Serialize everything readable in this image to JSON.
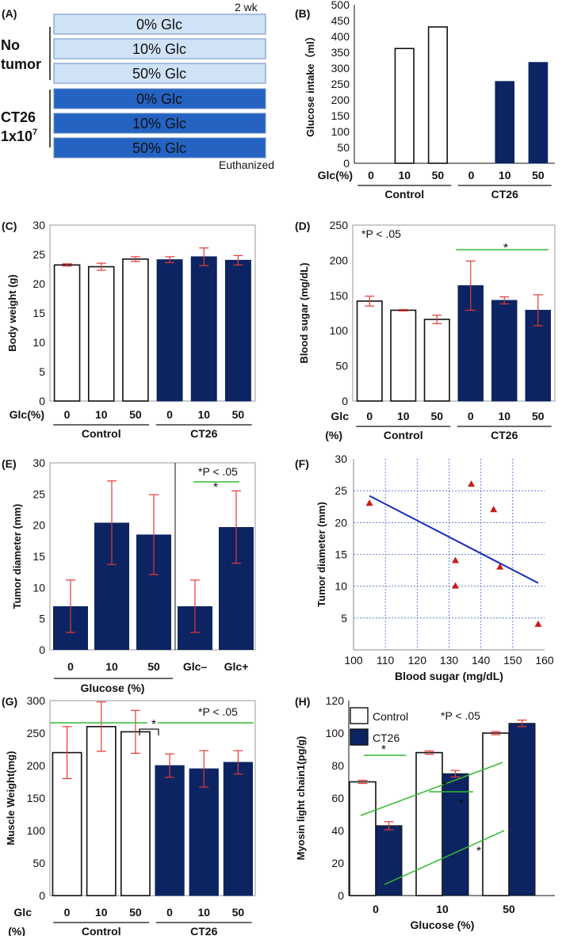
{
  "colors": {
    "dark": "#0c2461",
    "light_box": "#cfe2f6",
    "dark_box": "#2463c1",
    "err": "#e53935",
    "sig": "#33bb33",
    "fit": "#1a2fb5",
    "point": "#cc1a1a",
    "grid": "#4466cc"
  },
  "panelA": {
    "label": "(A)",
    "top_note": "2 wk",
    "bottom_note": "Euthanized",
    "group_no_tumor": [
      "No",
      "tumor"
    ],
    "group_ct26": "CT26",
    "ct26_dose": "1x10",
    "ct26_exp": "7",
    "boxes": [
      "0% Glc",
      "10% Glc",
      "50% Glc",
      "0% Glc",
      "10% Glc",
      "50% Glc"
    ]
  },
  "chart_data": [
    {
      "id": "B",
      "label": "(B)",
      "type": "bar",
      "ylabel": "Glucose intake（ml）",
      "ylim": [
        0,
        500
      ],
      "yticks": [
        0,
        50,
        100,
        150,
        200,
        250,
        300,
        350,
        400,
        450,
        500
      ],
      "xlabel_prefix": "Glc(%)",
      "categories": [
        "0",
        "10",
        "50",
        "0",
        "10",
        "50"
      ],
      "groups": [
        "Control",
        "CT26"
      ],
      "values": [
        0,
        362,
        430,
        0,
        258,
        318
      ],
      "errors": [
        0,
        0,
        0,
        0,
        0,
        0
      ],
      "fill": [
        "white",
        "white",
        "white",
        "dark",
        "dark",
        "dark"
      ]
    },
    {
      "id": "C",
      "label": "(C)",
      "type": "bar",
      "ylabel": "Body weight (g)",
      "ylim": [
        0,
        30
      ],
      "yticks": [
        0,
        5,
        10,
        15,
        20,
        25,
        30
      ],
      "xlabel_prefix": "Glc(%)",
      "categories": [
        "0",
        "10",
        "50",
        "0",
        "10",
        "50"
      ],
      "groups": [
        "Control",
        "CT26"
      ],
      "values": [
        23.2,
        22.9,
        24.2,
        24.1,
        24.6,
        24.0
      ],
      "errors": [
        0.2,
        0.6,
        0.4,
        0.5,
        1.5,
        0.8
      ],
      "fill": [
        "white",
        "white",
        "white",
        "dark",
        "dark",
        "dark"
      ]
    },
    {
      "id": "D",
      "label": "(D)",
      "type": "bar",
      "ylabel": "Blood sugar (mg/dL)",
      "ylim": [
        0,
        250
      ],
      "yticks": [
        0,
        50,
        100,
        150,
        200,
        250
      ],
      "xlabel_prefix": "Glc",
      "xlabel_unit": "(%)",
      "categories": [
        "0",
        "10",
        "50",
        "0",
        "10",
        "50"
      ],
      "groups": [
        "Control",
        "CT26"
      ],
      "values": [
        142,
        129,
        116,
        164,
        143,
        129
      ],
      "errors": [
        7,
        1,
        6,
        35,
        5,
        22
      ],
      "fill": [
        "white",
        "white",
        "white",
        "dark",
        "dark",
        "dark"
      ],
      "annotation": "*P < .05",
      "sig_mark": "*"
    },
    {
      "id": "E",
      "label": "(E)",
      "type": "bar",
      "ylabel": "Tumor diameter (mm)",
      "ylim": [
        0,
        30
      ],
      "yticks": [
        0,
        5,
        10,
        15,
        20,
        25,
        30
      ],
      "xlabel": "Glucose (%)",
      "categories": [
        "0",
        "10",
        "50",
        "Glc–",
        "Glc+"
      ],
      "values": [
        7.0,
        20.4,
        18.5,
        7.0,
        19.7
      ],
      "errors": [
        4.2,
        6.7,
        6.4,
        4.2,
        5.8
      ],
      "annotation": "*P < .05",
      "sig_mark": "*"
    },
    {
      "id": "F",
      "label": "(F)",
      "type": "scatter",
      "xlabel": "Blood sugar (mg/dL)",
      "ylabel": "Tumor diameter (mm)",
      "xlim": [
        100,
        160
      ],
      "ylim": [
        0,
        30
      ],
      "xticks": [
        100,
        110,
        120,
        130,
        140,
        150,
        160
      ],
      "yticks": [
        5,
        10,
        15,
        20,
        25,
        30
      ],
      "points": [
        [
          105,
          23
        ],
        [
          132,
          14
        ],
        [
          132,
          10
        ],
        [
          137,
          26
        ],
        [
          144,
          22
        ],
        [
          146,
          13
        ],
        [
          158,
          4
        ]
      ],
      "trend": [
        [
          105,
          24.2
        ],
        [
          158,
          10.5
        ]
      ],
      "grid": true
    },
    {
      "id": "G",
      "label": "(G)",
      "type": "bar",
      "ylabel": "Muscle Weight(mg)",
      "ylim": [
        0,
        300
      ],
      "yticks": [
        0,
        50,
        100,
        150,
        200,
        250,
        300
      ],
      "xlabel_prefix": "Glc",
      "xlabel_unit": "(%)",
      "categories": [
        "0",
        "10",
        "50",
        "0",
        "10",
        "50"
      ],
      "groups": [
        "Control",
        "CT26"
      ],
      "values": [
        220,
        260,
        252,
        200,
        195,
        205
      ],
      "errors": [
        40,
        38,
        33,
        18,
        28,
        18
      ],
      "fill": [
        "white",
        "white",
        "white",
        "dark",
        "dark",
        "dark"
      ],
      "annotation": "*P < .05",
      "sig_mark": "*"
    },
    {
      "id": "H",
      "label": "(H)",
      "type": "bar",
      "ylabel": "Myosin light chain1(pg/g)",
      "xlabel": "Glucose (%)",
      "ylim": [
        0,
        120
      ],
      "yticks": [
        0,
        20,
        40,
        60,
        80,
        100,
        120
      ],
      "categories": [
        "0",
        "10",
        "50"
      ],
      "series": [
        {
          "name": "Control",
          "values": [
            70,
            88,
            100
          ],
          "errors": [
            1,
            1,
            1
          ]
        },
        {
          "name": "CT26",
          "values": [
            43,
            75,
            106
          ],
          "errors": [
            2.5,
            2,
            2
          ]
        }
      ],
      "annotation": "*P < .05",
      "sig_mark": "*"
    }
  ]
}
